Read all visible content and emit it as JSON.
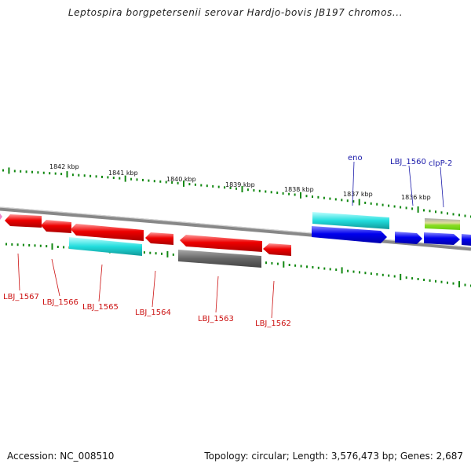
{
  "title": "Leptospira borgpetersenii serovar Hardjo-bovis JB197 chromos...",
  "footer": {
    "accession": "Accession: NC_008510",
    "summary": "Topology: circular; Length: 3,576,473 bp; Genes: 2,687"
  },
  "ticks": [
    "1842 kbp",
    "1841 kbp",
    "1840 kbp",
    "1839 kbp",
    "1838 kbp",
    "1837 kbp",
    "1836 kbp"
  ],
  "genes_top": [
    "eno",
    "LBJ_1560",
    "clpP-2"
  ],
  "genes_bottom": [
    "LBJ_1567",
    "LBJ_1566",
    "LBJ_1565",
    "LBJ_1564",
    "LBJ_1563",
    "LBJ_1562"
  ],
  "colors": {
    "reverse_gene": "#ee0000",
    "forward_gene": "#0000ee",
    "rna_like": "#22cccc",
    "other": "#666666",
    "highlight": "#88dd22",
    "tick": "#118811",
    "backbone": "#888888"
  }
}
